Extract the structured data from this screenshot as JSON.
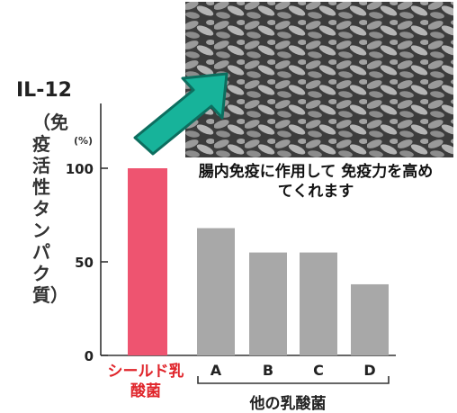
{
  "chart_data": {
    "type": "bar",
    "title": "IL-12",
    "ylabel": "（免疫活性タンパク質）",
    "yunit": "(%)",
    "categories": [
      "シールド乳酸菌",
      "A",
      "B",
      "C",
      "D"
    ],
    "values": [
      100,
      68,
      55,
      55,
      38
    ],
    "yticks": [
      "0",
      "50",
      "100"
    ],
    "ylim": [
      0,
      100
    ],
    "grid": false,
    "group_label": "他の乳酸菌",
    "annotation": "腸内免疫に作用して 免疫力を高めてくれます",
    "colors": {
      "highlight": "#ee5470",
      "others": "#a8a8a8",
      "arrow": "#17b39a"
    }
  }
}
